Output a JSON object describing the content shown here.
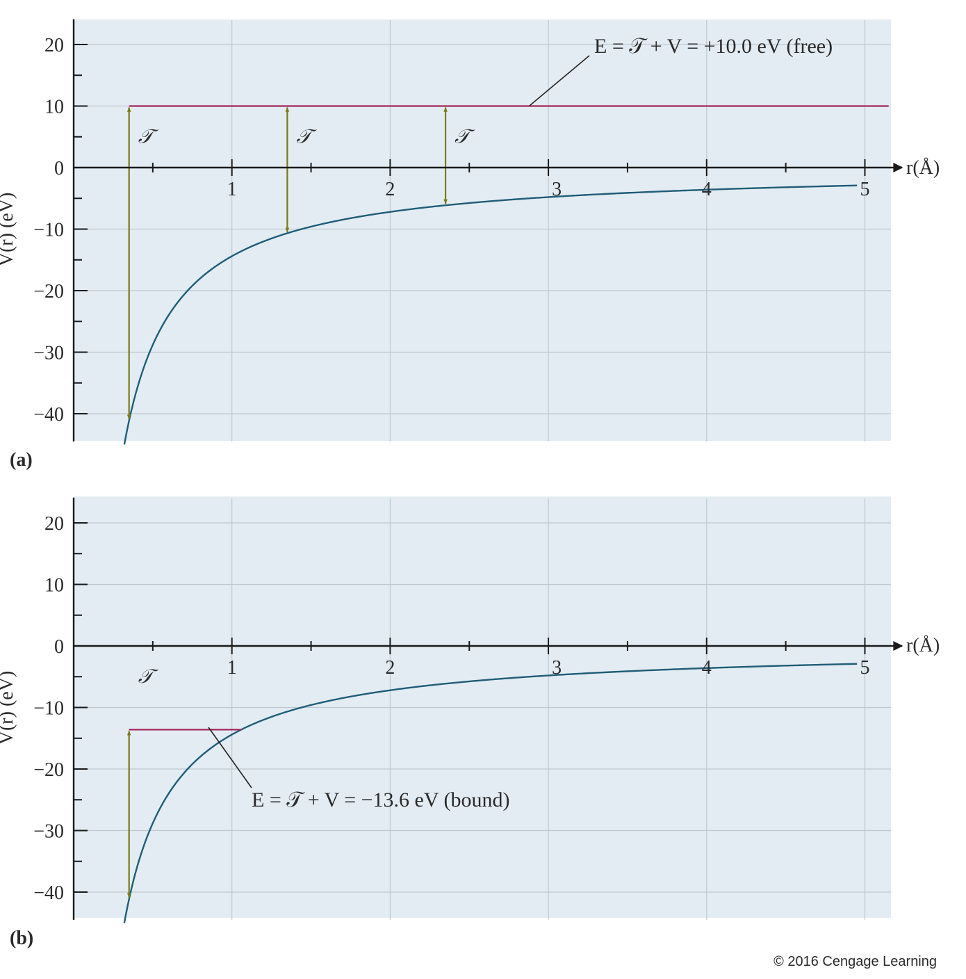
{
  "colors": {
    "plot_background": "#e3ecf2",
    "grid": "#bcc9d3",
    "axis": "#1a1a1a",
    "curve": "#1f5d78",
    "energy_line": "#a3235a",
    "arrow": "#7a7a18",
    "text": "#2a2a2a"
  },
  "copyright": "© 2016 Cengage Learning",
  "chart_data": [
    {
      "type": "line",
      "panel_label": "(a)",
      "xlabel": "r(Å)",
      "ylabel": "V(r) (eV)",
      "xlim": [
        0,
        5.15
      ],
      "ylim": [
        -44.5,
        24
      ],
      "x_tick_labels": [
        "1",
        "2",
        "3",
        "4",
        "5"
      ],
      "y_tick_labels": [
        "20",
        "10",
        "0",
        "−10",
        "−20",
        "−30",
        "−40"
      ],
      "y_ticks": [
        20,
        10,
        0,
        -10,
        -20,
        -30,
        -40
      ],
      "grid": true,
      "potential": {
        "name": "V(r)",
        "formula": "V = -14.4 / r (eV, r in Å)",
        "x_range": [
          0.32,
          4.95
        ]
      },
      "energy_level": {
        "value": 10.0,
        "label": "E = 𝒯 + V = +10.0 eV (free)",
        "x_range": [
          0.35,
          5.15
        ]
      },
      "kinetic_arrows": [
        {
          "x": 0.35,
          "from": 10.0,
          "to": -41.1,
          "label": "𝒯"
        },
        {
          "x": 1.35,
          "from": 10.0,
          "to": -10.7,
          "label": "𝒯"
        },
        {
          "x": 2.35,
          "from": 10.0,
          "to": -6.1,
          "label": "𝒯"
        }
      ]
    },
    {
      "type": "line",
      "panel_label": "(b)",
      "xlabel": "r(Å)",
      "ylabel": "V(r) (eV)",
      "xlim": [
        0,
        5.15
      ],
      "ylim": [
        -44.5,
        24
      ],
      "x_tick_labels": [
        "1",
        "2",
        "3",
        "4",
        "5"
      ],
      "y_tick_labels": [
        "20",
        "10",
        "0",
        "−10",
        "−20",
        "−30",
        "−40"
      ],
      "y_ticks": [
        20,
        10,
        0,
        -10,
        -20,
        -30,
        -40
      ],
      "grid": true,
      "potential": {
        "name": "V(r)",
        "formula": "V = -14.4 / r (eV, r in Å)",
        "x_range": [
          0.32,
          4.95
        ]
      },
      "energy_level": {
        "value": -13.6,
        "label": "E = 𝒯 + V = −13.6 eV (bound)",
        "x_range": [
          0.35,
          1.06
        ]
      },
      "kinetic_arrows": [
        {
          "x": 0.35,
          "from": -13.6,
          "to": -41.1,
          "label": "𝒯"
        }
      ]
    }
  ]
}
